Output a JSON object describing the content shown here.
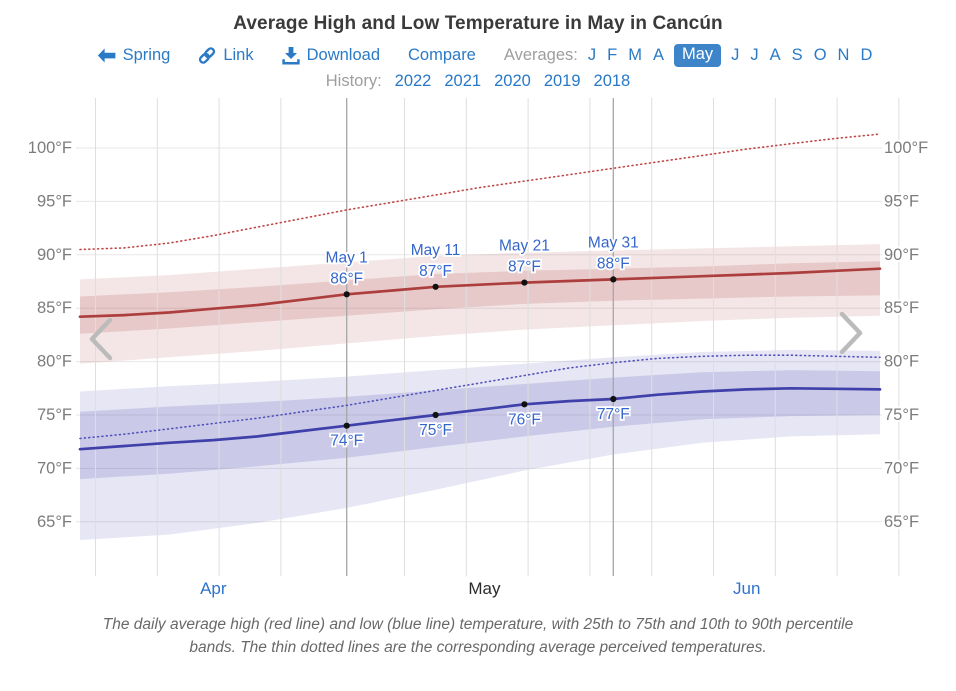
{
  "header": {
    "title": "Average High and Low Temperature in May in Cancún",
    "nav": {
      "spring_label": "Spring",
      "link_label": "Link",
      "download_label": "Download",
      "compare_label": "Compare",
      "averages_label": "Averages:",
      "months_before": [
        "J",
        "F",
        "M",
        "A"
      ],
      "selected_month": "May",
      "months_after": [
        "J",
        "J",
        "A",
        "S",
        "O",
        "N",
        "D"
      ],
      "history_label": "History:",
      "years": [
        "2022",
        "2021",
        "2020",
        "2019",
        "2018"
      ]
    }
  },
  "caption": "The daily average high (red line) and low (blue line) temperature, with 25th to 75th and 10th to 90th percentile bands. The thin dotted lines are the corresponding average perceived temperatures.",
  "colors": {
    "link_blue": "#2b7ac6",
    "badge_blue": "#3d85c8",
    "label_blue": "#3566cc",
    "axis_gray": "#7c7c7c",
    "red_line": "#ad3e3e",
    "red_dotted": "#c04848",
    "blue_line": "#4040aa",
    "blue_dotted": "#5353bb",
    "marker_black": "#111111",
    "grid_light": "#dedede",
    "grid_horizontal": "#e7e7e7",
    "grid_dark": "#a6a6a6",
    "chevron_gray": "#bbbbbb",
    "month_current": "#2b2b2b",
    "month_link": "#2e74c9"
  },
  "chart_data": {
    "type": "line",
    "title": "Average High and Low Temperature in May in Cancún",
    "y_axis": {
      "unit": "°F",
      "ticks": [
        100,
        95,
        90,
        85,
        80,
        75,
        70,
        65
      ],
      "sides": "both"
    },
    "x_axis": {
      "domain_days": [
        0,
        90
      ],
      "domain_note": "day 0 = Apr 1, day 30 = May 1, day 60 = May 31, day 90 = Jun 30",
      "highlight_days": [
        30,
        60
      ],
      "months": [
        {
          "label": "Apr",
          "center_day": 15,
          "is_link": true
        },
        {
          "label": "May",
          "center_day": 45.5,
          "is_link": false
        },
        {
          "label": "Jun",
          "center_day": 75,
          "is_link": true
        }
      ]
    },
    "series_days": [
      0,
      5,
      10,
      15,
      20,
      25,
      30,
      35,
      40,
      45,
      50,
      55,
      60,
      65,
      70,
      75,
      80,
      85,
      90
    ],
    "series": [
      {
        "name": "average-high",
        "legend": "daily average high",
        "color": "#ad3e3e",
        "dash": "solid",
        "width": 2.7,
        "values": [
          84.2,
          84.35,
          84.6,
          84.95,
          85.3,
          85.8,
          86.3,
          86.65,
          87.0,
          87.2,
          87.4,
          87.55,
          87.7,
          87.85,
          88.0,
          88.15,
          88.3,
          88.5,
          88.7
        ]
      },
      {
        "name": "perceived-high",
        "legend": "average perceived high",
        "color": "#c04848",
        "dash": "dotted",
        "width": 1.6,
        "values": [
          90.5,
          90.65,
          91.1,
          91.8,
          92.6,
          93.4,
          94.2,
          94.9,
          95.6,
          96.3,
          96.9,
          97.5,
          98.1,
          98.7,
          99.3,
          99.9,
          100.4,
          100.9,
          101.3
        ]
      },
      {
        "name": "average-low",
        "legend": "daily average low",
        "color": "#4040aa",
        "dash": "solid",
        "width": 2.7,
        "values": [
          71.8,
          72.1,
          72.4,
          72.65,
          73.0,
          73.5,
          74.0,
          74.5,
          75.0,
          75.5,
          76.0,
          76.3,
          76.5,
          76.9,
          77.2,
          77.4,
          77.5,
          77.45,
          77.4
        ]
      },
      {
        "name": "perceived-low",
        "legend": "average perceived low",
        "color": "#5353bb",
        "dash": "dotted",
        "width": 1.6,
        "values": [
          72.8,
          73.2,
          73.7,
          74.2,
          74.7,
          75.3,
          75.9,
          76.6,
          77.3,
          78.0,
          78.7,
          79.4,
          79.9,
          80.3,
          80.5,
          80.6,
          80.6,
          80.5,
          80.4
        ]
      }
    ],
    "band_days": [
      0,
      10,
      20,
      30,
      40,
      50,
      60,
      70,
      80,
      90
    ],
    "bands": [
      {
        "name": "high-10th-90th",
        "color": "rgba(173,62,62,0.13)",
        "upper": [
          87.7,
          88.1,
          88.7,
          89.3,
          89.9,
          90.2,
          90.4,
          90.6,
          90.8,
          91.0
        ],
        "lower": [
          79.8,
          80.4,
          81.0,
          81.7,
          82.4,
          83.0,
          83.4,
          83.8,
          84.1,
          84.3
        ]
      },
      {
        "name": "high-25th-75th",
        "color": "rgba(173,62,62,0.17)",
        "upper": [
          86.1,
          86.5,
          87.0,
          87.6,
          88.2,
          88.5,
          88.7,
          88.9,
          89.2,
          89.4
        ],
        "lower": [
          82.6,
          83.1,
          83.7,
          84.3,
          84.9,
          85.4,
          85.7,
          85.9,
          86.1,
          86.2
        ]
      },
      {
        "name": "low-10th-90th",
        "color": "rgba(64,64,170,0.13)",
        "upper": [
          77.2,
          77.7,
          78.1,
          78.6,
          79.2,
          79.8,
          80.4,
          80.9,
          81.1,
          81.0
        ],
        "lower": [
          63.3,
          63.8,
          64.9,
          66.3,
          68.0,
          69.8,
          71.3,
          72.4,
          73.0,
          73.2
        ]
      },
      {
        "name": "low-25th-75th",
        "color": "rgba(64,64,170,0.17)",
        "upper": [
          75.3,
          75.8,
          76.2,
          76.7,
          77.3,
          77.9,
          78.5,
          79.0,
          79.2,
          79.1
        ],
        "lower": [
          69.0,
          69.5,
          70.2,
          71.0,
          72.0,
          73.0,
          73.9,
          74.6,
          74.9,
          75.0
        ]
      }
    ],
    "markers": [
      {
        "series": "average-high",
        "day": 30,
        "value": 86.3,
        "date_label": "May 1",
        "value_label": "86°F",
        "label_position": "above"
      },
      {
        "series": "average-high",
        "day": 40,
        "value": 87.0,
        "date_label": "May 11",
        "value_label": "87°F",
        "label_position": "above"
      },
      {
        "series": "average-high",
        "day": 50,
        "value": 87.4,
        "date_label": "May 21",
        "value_label": "87°F",
        "label_position": "above"
      },
      {
        "series": "average-high",
        "day": 60,
        "value": 87.7,
        "date_label": "May 31",
        "value_label": "88°F",
        "label_position": "above"
      },
      {
        "series": "average-low",
        "day": 30,
        "value": 74.0,
        "value_label": "74°F",
        "label_position": "below"
      },
      {
        "series": "average-low",
        "day": 40,
        "value": 75.0,
        "value_label": "75°F",
        "label_position": "below"
      },
      {
        "series": "average-low",
        "day": 50,
        "value": 76.0,
        "value_label": "76°F",
        "label_position": "below"
      },
      {
        "series": "average-low",
        "day": 60,
        "value": 76.5,
        "value_label": "77°F",
        "label_position": "below"
      }
    ]
  }
}
